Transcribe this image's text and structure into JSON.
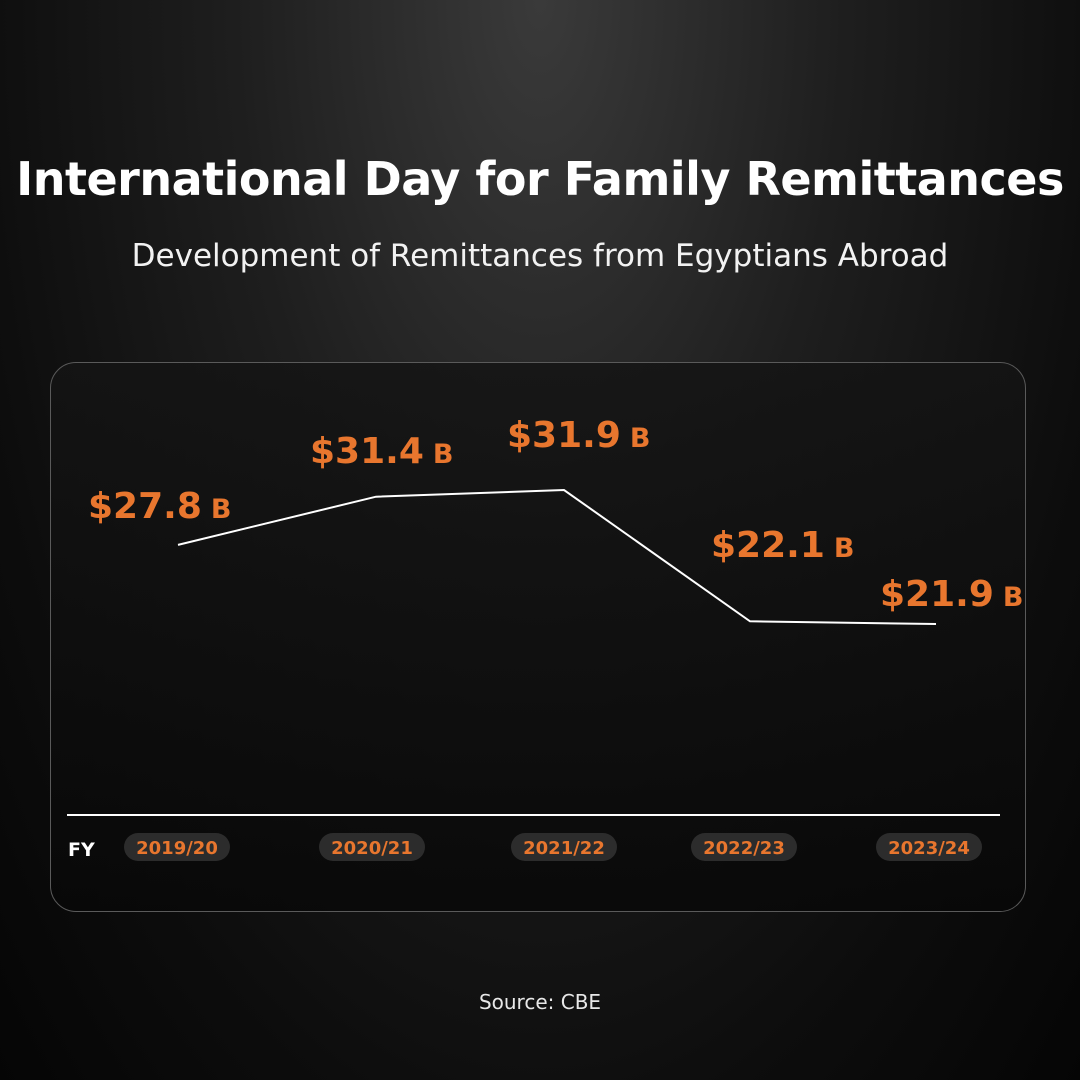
{
  "title": "International Day for Family Remittances",
  "subtitle": "Development of Remittances from Egyptians Abroad",
  "source": "Source: CBE",
  "chart_data": {
    "type": "line",
    "categories": [
      "2019/20",
      "2020/21",
      "2021/22",
      "2022/23",
      "2023/24"
    ],
    "values": [
      27.8,
      31.4,
      31.9,
      22.1,
      21.9
    ],
    "data_labels": [
      "$27.8",
      "$31.4",
      "$31.9",
      "$22.1",
      "$21.9"
    ],
    "unit_suffix": "B",
    "xlabel": "FY",
    "grid": false,
    "legend": "none"
  },
  "colors": {
    "accent": "#e8762e",
    "line": "#ffffff",
    "pill_bg": "#2c2c2c"
  }
}
